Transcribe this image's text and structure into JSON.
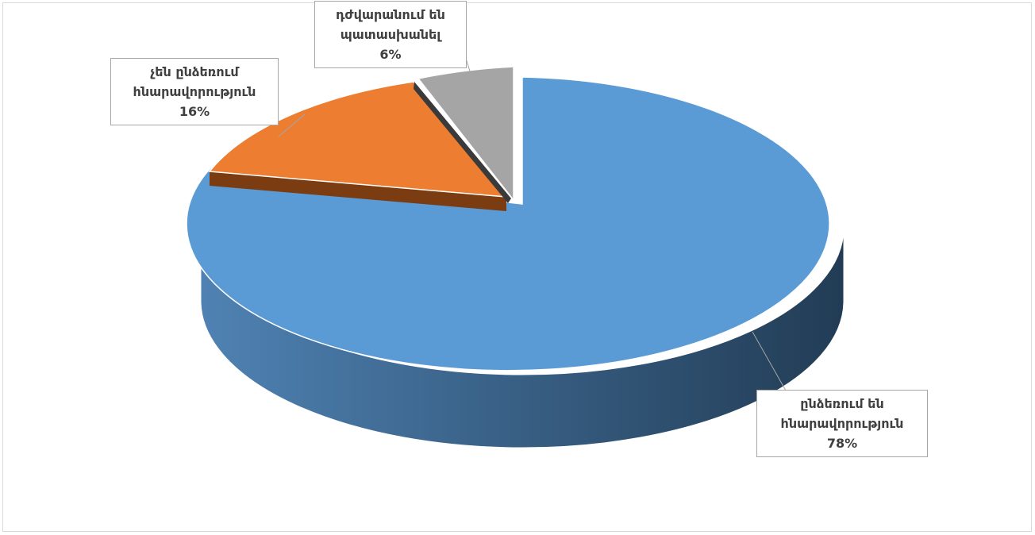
{
  "chart_data": {
    "type": "pie",
    "title": "",
    "slices": [
      {
        "label_lines": [
          "ընձեռում են",
          "հնարավորություն"
        ],
        "pct_text": "78%",
        "value": 78,
        "color": "#5b9bd5"
      },
      {
        "label_lines": [
          "չեն ընձեռում",
          "հնարավորություն"
        ],
        "pct_text": "16%",
        "value": 16,
        "color": "#ed7d31"
      },
      {
        "label_lines": [
          "դժվարանում են",
          "պատասխանել"
        ],
        "pct_text": "6%",
        "value": 6,
        "color": "#a5a5a5"
      }
    ],
    "legend": "none",
    "three_d": true
  }
}
